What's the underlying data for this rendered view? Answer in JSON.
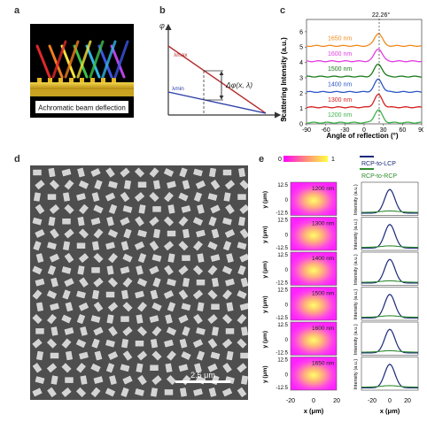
{
  "panel_labels": {
    "a": "a",
    "b": "b",
    "c": "c",
    "d": "d",
    "e": "e"
  },
  "panel_a": {
    "caption": "Achromatic beam deflection"
  },
  "panel_b": {
    "y_symbol": "φ",
    "x_symbol": "x",
    "lambda_max": "λmax",
    "lambda_min": "λmin",
    "delta": "Δφ(x, λ)"
  },
  "panel_c": {
    "ylabel": "Scattering Intensity (a.u.)",
    "xlabel": "Angle of reflection (°)",
    "peak_label": "22.26°",
    "xticks": [
      "-90",
      "-60",
      "-30",
      "0",
      "30",
      "60",
      "90"
    ],
    "yticks": [
      "0",
      "1",
      "2",
      "3",
      "4",
      "5",
      "6"
    ]
  },
  "panel_d": {
    "scalebar": "2.5 μm"
  },
  "panel_e": {
    "cbar_min": "0",
    "cbar_max": "1",
    "legend": [
      "RCP-to-LCP",
      "RCP-to-RCP"
    ],
    "ylabel": "y (μm)",
    "xlabel": "x (μm)",
    "yticks": [
      "12.5",
      "0",
      "-12.5"
    ],
    "xticks": [
      "-20",
      "0",
      "20"
    ],
    "int_label": "Intensity (a.u.)",
    "wavelengths": [
      "1200 nm",
      "1300 nm",
      "1400 nm",
      "1500 nm",
      "1600 nm",
      "1650 nm"
    ]
  },
  "chart_data": {
    "type": "line",
    "title": "",
    "xlabel": "Angle of reflection (°)",
    "ylabel": "Scattering Intensity (a.u.)",
    "xlim": [
      -90,
      90
    ],
    "ylim": [
      0,
      6.8
    ],
    "peak_angle": 22.26,
    "series": [
      {
        "name": "1200 nm",
        "offset": 0,
        "color": "#3cb34a"
      },
      {
        "name": "1300 nm",
        "offset": 1,
        "color": "#d62020"
      },
      {
        "name": "1400 nm",
        "offset": 2,
        "color": "#2a56c6"
      },
      {
        "name": "1500 nm",
        "offset": 3,
        "color": "#1a7a1a"
      },
      {
        "name": "1600 nm",
        "offset": 4,
        "color": "#e23ee2"
      },
      {
        "name": "1650 nm",
        "offset": 5,
        "color": "#f08a1e"
      }
    ]
  },
  "colors": {
    "rcp_lcp": "#1c2a7a",
    "rcp_rcp": "#2e8b2e"
  }
}
